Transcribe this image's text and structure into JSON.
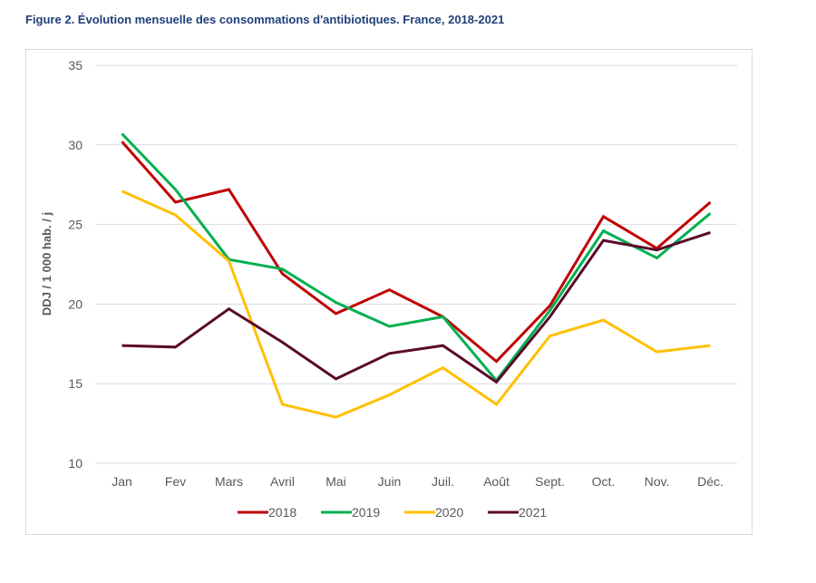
{
  "figure": {
    "title": "Figure 2. Évolution mensuelle des consommations d'antibiotiques. France, 2018-2021"
  },
  "chart_data": {
    "type": "line",
    "title": "Figure 2. Évolution mensuelle des consommations d'antibiotiques. France, 2018-2021",
    "xlabel": "",
    "ylabel": "DDJ / 1 000 hab. / j",
    "ylim": [
      10,
      35
    ],
    "yticks": [
      "10",
      "15",
      "20",
      "25",
      "30",
      "35"
    ],
    "grid": true,
    "legend": "bottom",
    "categories": [
      "Jan",
      "Fev",
      "Mars",
      "Avril",
      "Mai",
      "Juin",
      "Juil.",
      "Août",
      "Sept.",
      "Oct.",
      "Nov.",
      "Déc."
    ],
    "series": [
      {
        "name": "2018",
        "color": "#c00000",
        "values": [
          30.2,
          26.4,
          27.2,
          21.9,
          19.4,
          20.9,
          19.2,
          16.4,
          19.9,
          25.5,
          23.5,
          26.4
        ]
      },
      {
        "name": "2019",
        "color": "#00b050",
        "values": [
          30.7,
          27.2,
          22.8,
          22.2,
          20.1,
          18.6,
          19.2,
          15.2,
          19.6,
          24.6,
          22.9,
          25.7
        ]
      },
      {
        "name": "2020",
        "color": "#ffc000",
        "values": [
          27.1,
          25.6,
          22.7,
          13.7,
          12.9,
          14.3,
          16.0,
          13.7,
          18.0,
          19.0,
          17.0,
          17.4
        ]
      },
      {
        "name": "2021",
        "color": "#5a0a28",
        "values": [
          17.4,
          17.3,
          19.7,
          17.6,
          15.3,
          16.9,
          17.4,
          15.1,
          19.2,
          24.0,
          23.4,
          24.5
        ]
      }
    ]
  }
}
